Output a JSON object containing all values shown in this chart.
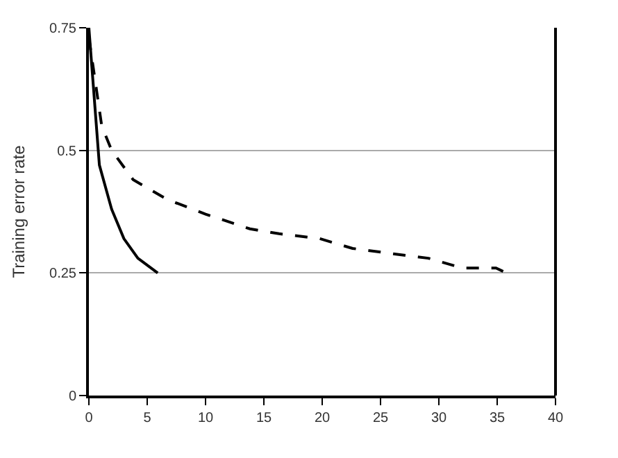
{
  "chart_data": {
    "type": "line",
    "ylabel": "Training error rate",
    "series": [
      {
        "color": "#000000",
        "line_style": "solid",
        "x": [
          0,
          0.9,
          1.95,
          3,
          4.2,
          5.9
        ],
        "values": [
          0.75,
          0.47,
          0.38,
          0.32,
          0.28,
          0.25
        ]
      },
      {
        "color": "#000000",
        "line_style": "dashed",
        "x": [
          0,
          1.1,
          1.95,
          3.8,
          6.7,
          10,
          13.8,
          16.3,
          19.8,
          22.6,
          25.8,
          29.1,
          32,
          34.9,
          35.8
        ],
        "values": [
          0.73,
          0.55,
          0.5,
          0.44,
          0.4,
          0.37,
          0.34,
          0.33,
          0.32,
          0.3,
          0.29,
          0.28,
          0.26,
          0.26,
          0.25
        ]
      }
    ],
    "xlim": [
      0,
      40
    ],
    "xticks": [
      0,
      5,
      10,
      15,
      20,
      25,
      30,
      35,
      40
    ],
    "ylim": [
      0,
      0.75
    ],
    "yticks": [
      0,
      0.25,
      0.5,
      0.75
    ],
    "grid": "y",
    "legend": false,
    "marker": "none"
  }
}
